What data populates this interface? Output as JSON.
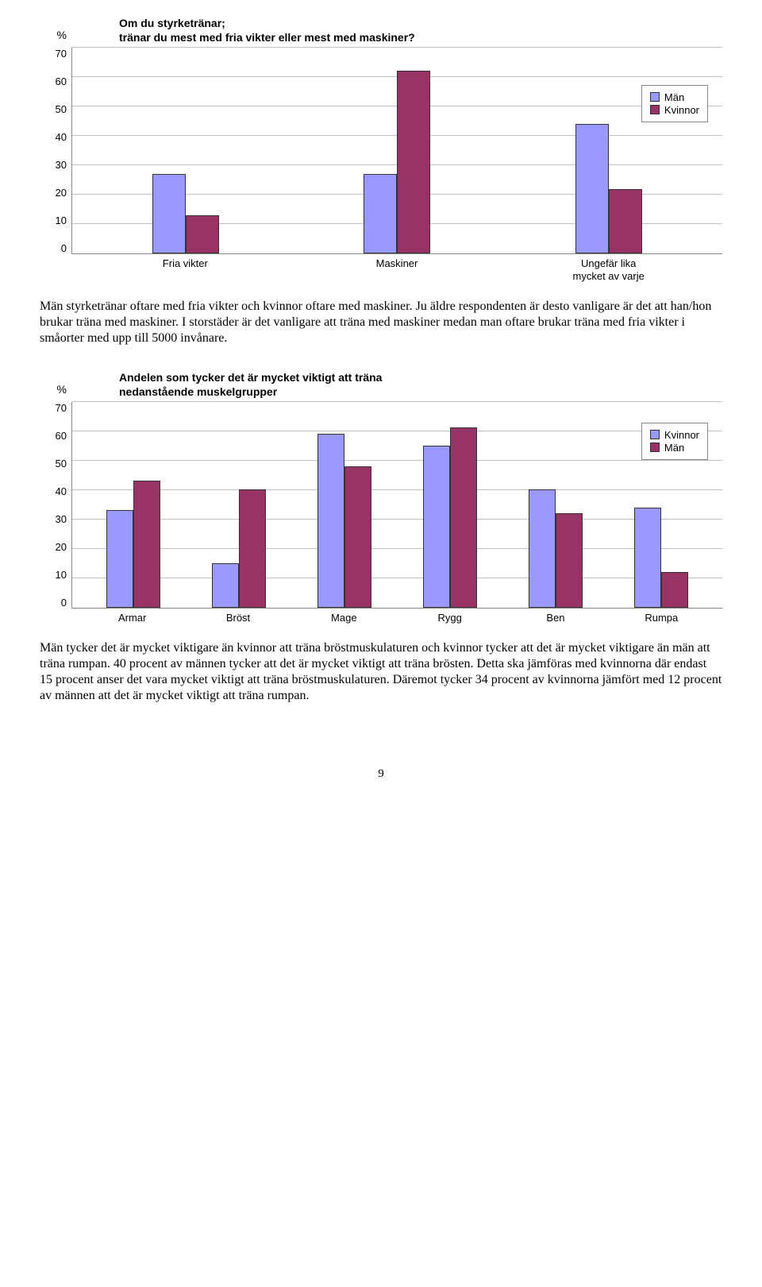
{
  "chart1": {
    "title_line1": "Om du styrketränar;",
    "title_line2": "tränar du mest med fria vikter eller mest med maskiner?",
    "ylabel_symbol": "%",
    "ymax": 70,
    "ytick_step": 10,
    "yticks": [
      0,
      10,
      20,
      30,
      40,
      50,
      60,
      70
    ],
    "categories": [
      "Fria vikter",
      "Maskiner",
      "Ungefär lika\nmycket av varje"
    ],
    "series": [
      {
        "name": "Män",
        "color": "#9999ff",
        "values": [
          27,
          27,
          44
        ]
      },
      {
        "name": "Kvinnor",
        "color": "#993366",
        "values": [
          13,
          62,
          22
        ]
      }
    ],
    "legend_items": [
      "Män",
      "Kvinnor"
    ],
    "grid_color": "#c0c0c0",
    "bg": "#ffffff",
    "legend_top_pct": 18
  },
  "para1": "Män styrketränar oftare med fria vikter och kvinnor oftare med maskiner. Ju äldre respondenten är desto vanligare är det att han/hon brukar träna med maskiner. I storstäder är det vanligare att träna med maskiner medan man oftare brukar träna med fria vikter i småorter med upp till 5000 invånare.",
  "chart2": {
    "title_line1": "Andelen som tycker det är mycket viktigt att träna",
    "title_line2": "nedanstående muskelgrupper",
    "ylabel_symbol": "%",
    "ymax": 70,
    "ytick_step": 10,
    "yticks": [
      0,
      10,
      20,
      30,
      40,
      50,
      60,
      70
    ],
    "categories": [
      "Armar",
      "Bröst",
      "Mage",
      "Rygg",
      "Ben",
      "Rumpa"
    ],
    "series": [
      {
        "name": "Kvinnor",
        "color": "#9999ff",
        "values": [
          33,
          15,
          59,
          55,
          40,
          34
        ]
      },
      {
        "name": "Män",
        "color": "#993366",
        "values": [
          43,
          40,
          48,
          61,
          32,
          12
        ]
      }
    ],
    "legend_items": [
      "Kvinnor",
      "Män"
    ],
    "grid_color": "#c0c0c0",
    "bg": "#ffffff",
    "legend_top_pct": 10
  },
  "para2": "Män tycker det är mycket viktigare än kvinnor att träna bröstmuskulaturen och kvinnor tycker att det är mycket viktigare än män att träna rumpan. 40 procent av männen tycker att det är mycket viktigt att träna brösten. Detta ska jämföras med kvinnorna där endast 15 procent anser det vara mycket viktigt att träna bröstmuskulaturen. Däremot tycker 34 procent av kvinnorna jämfört med 12 procent av männen att det är mycket viktigt att träna rumpan.",
  "page_number": "9"
}
